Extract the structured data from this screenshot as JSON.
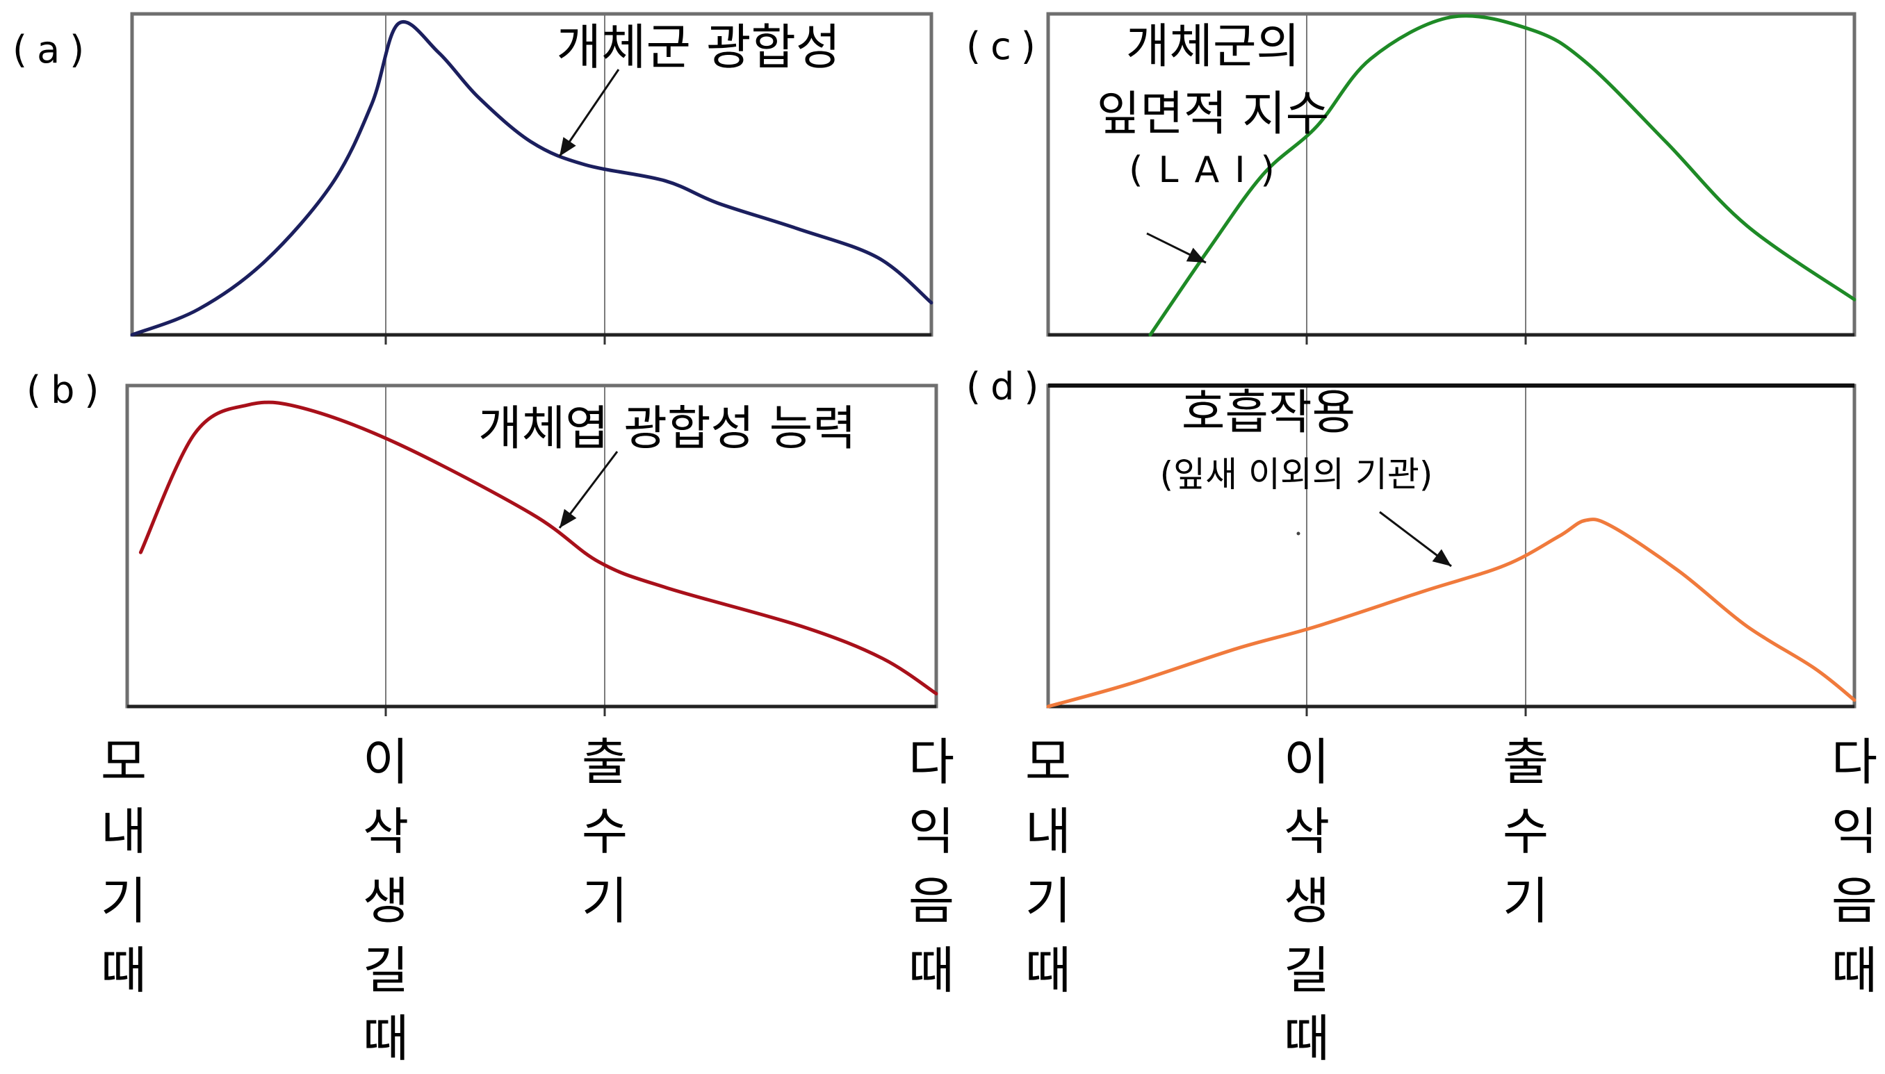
{
  "x_categories": [
    "모내기때",
    "이삭생길때",
    "출수기",
    "다익음때"
  ],
  "x_tick_labels": [
    [
      "모",
      "내",
      "기",
      "때"
    ],
    [
      "이",
      "삭",
      "생",
      "길",
      "때"
    ],
    [
      "출",
      "수",
      "기"
    ],
    [
      "다",
      "익",
      "음",
      "때"
    ]
  ],
  "chart_data": [
    {
      "type": "line",
      "panel_label": "(a)",
      "x_range": [
        0,
        3
      ],
      "y_range": [
        0,
        1
      ],
      "grid": "vertical lines at 이삭생길때 and 출수기",
      "annotation_lines": [
        "개체군 광합성"
      ],
      "series": [
        {
          "color": "#1b1f5e",
          "points": [
            [
              0,
              0
            ],
            [
              0.25,
              0.08
            ],
            [
              0.5,
              0.23
            ],
            [
              0.75,
              0.47
            ],
            [
              0.9,
              0.72
            ],
            [
              1,
              0.97
            ],
            [
              1.15,
              0.88
            ],
            [
              1.3,
              0.74
            ],
            [
              1.5,
              0.6
            ],
            [
              1.7,
              0.53
            ],
            [
              2,
              0.48
            ],
            [
              2.2,
              0.41
            ],
            [
              2.5,
              0.33
            ],
            [
              2.8,
              0.24
            ],
            [
              3,
              0.1
            ]
          ]
        }
      ]
    },
    {
      "type": "line",
      "panel_label": "(b)",
      "x_range": [
        0,
        3
      ],
      "y_range": [
        0,
        1
      ],
      "grid": "vertical lines at 이삭생길때 and 출수기",
      "annotation_lines": [
        "개체엽 광합성 능력"
      ],
      "series": [
        {
          "color": "#a8101a",
          "points": [
            [
              0.05,
              0.48
            ],
            [
              0.25,
              0.85
            ],
            [
              0.45,
              0.94
            ],
            [
              0.65,
              0.93
            ],
            [
              1,
              0.82
            ],
            [
              1.5,
              0.6
            ],
            [
              1.75,
              0.45
            ],
            [
              2,
              0.37
            ],
            [
              2.5,
              0.25
            ],
            [
              2.8,
              0.15
            ],
            [
              3,
              0.04
            ]
          ]
        }
      ]
    },
    {
      "type": "line",
      "panel_label": "(c)",
      "x_range": [
        0,
        3
      ],
      "y_range": [
        0,
        1
      ],
      "grid": "vertical lines at 이삭생길때 and 출수기",
      "annotation_lines": [
        "개체군의",
        "잎면적 지수",
        "(LAI)"
      ],
      "series": [
        {
          "color": "#1e8a26",
          "points": [
            [
              0.38,
              0
            ],
            [
              0.6,
              0.27
            ],
            [
              0.8,
              0.5
            ],
            [
              1,
              0.65
            ],
            [
              1.2,
              0.86
            ],
            [
              1.5,
              0.99
            ],
            [
              1.8,
              0.95
            ],
            [
              2,
              0.85
            ],
            [
              2.3,
              0.6
            ],
            [
              2.6,
              0.34
            ],
            [
              3,
              0.11
            ]
          ]
        }
      ]
    },
    {
      "type": "line",
      "panel_label": "(d)",
      "x_range": [
        0,
        3
      ],
      "y_range": [
        0,
        1
      ],
      "grid": "vertical lines at 이삭생길때 and 출수기",
      "annotation_lines": [
        "호흡작용",
        "(잎새 이외의 기관)"
      ],
      "series": [
        {
          "color": "#f07a3c",
          "points": [
            [
              0,
              0
            ],
            [
              0.3,
              0.07
            ],
            [
              0.7,
              0.18
            ],
            [
              1,
              0.25
            ],
            [
              1.4,
              0.36
            ],
            [
              1.7,
              0.44
            ],
            [
              1.9,
              0.53
            ],
            [
              2,
              0.58
            ],
            [
              2.1,
              0.56
            ],
            [
              2.35,
              0.42
            ],
            [
              2.6,
              0.25
            ],
            [
              2.85,
              0.12
            ],
            [
              3,
              0.02
            ]
          ]
        }
      ]
    }
  ]
}
